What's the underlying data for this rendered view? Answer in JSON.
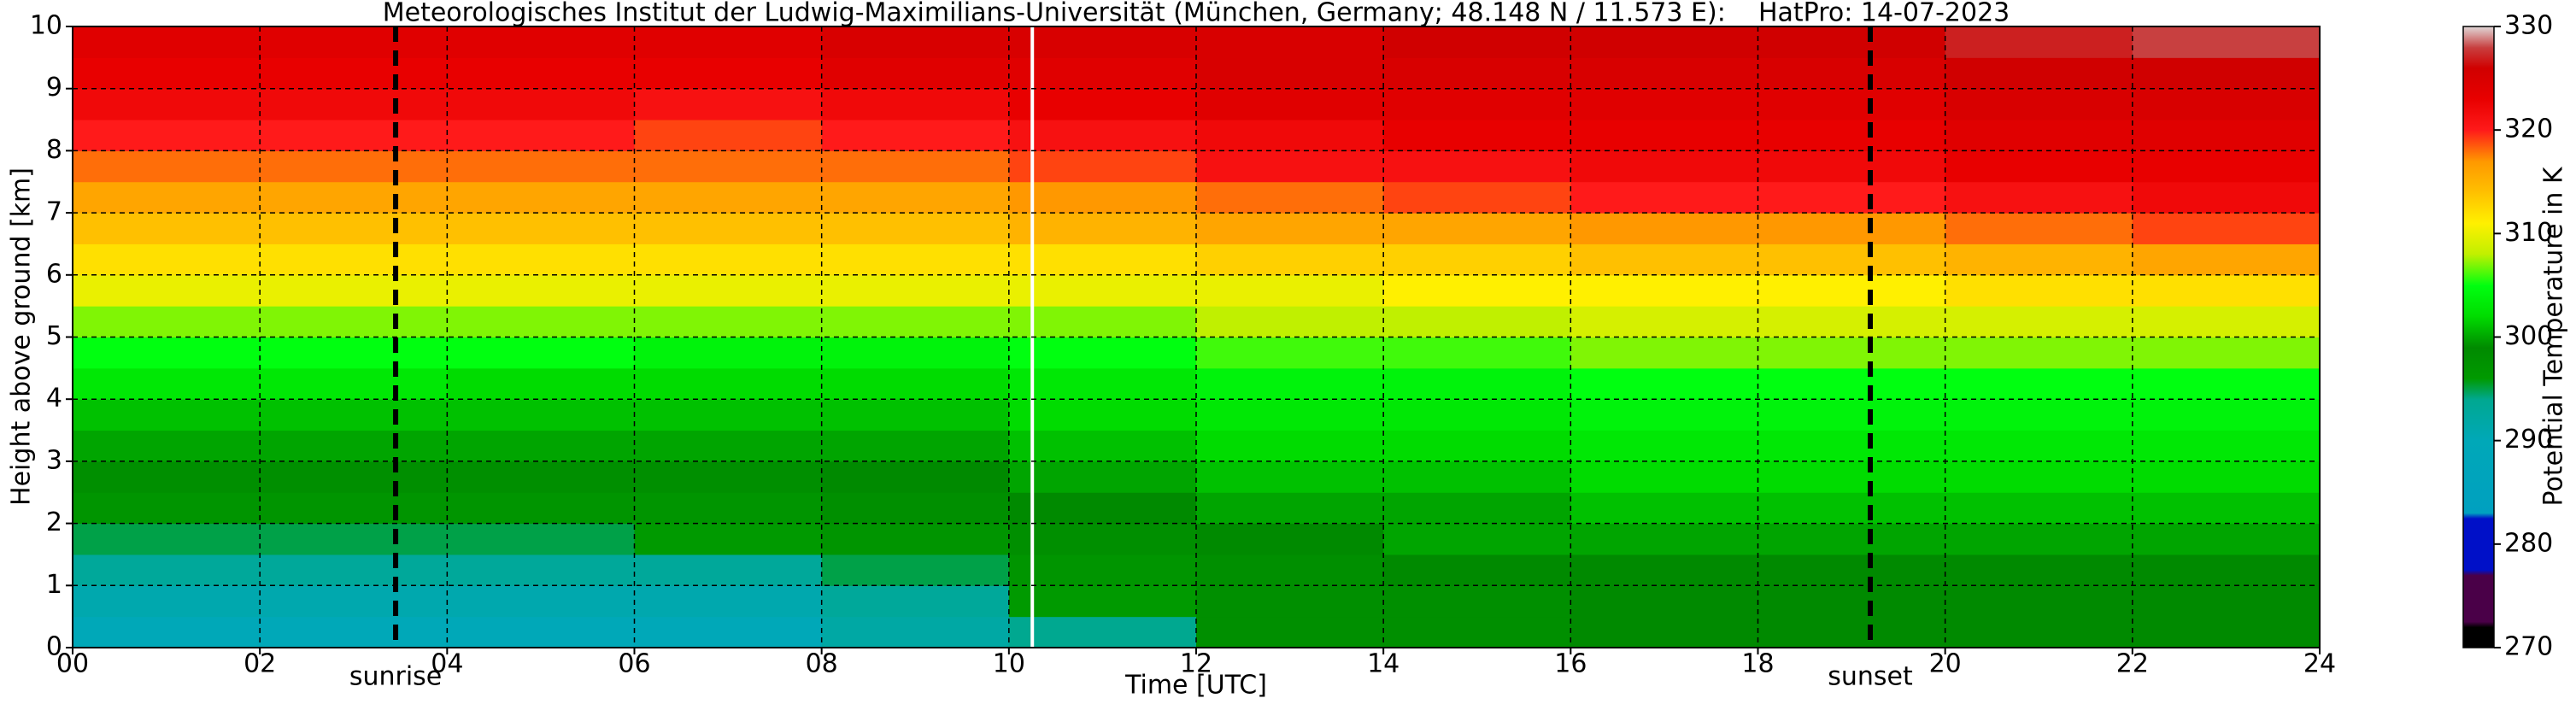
{
  "chart_data": {
    "type": "heatmap",
    "title": "Meteorologisches Institut der Ludwig-Maximilians-Universität (München, Germany; 48.148 N / 11.573 E):    HatPro: 14-07-2023",
    "x_label": "Time [UTC]",
    "y_label": "Height above ground [km]",
    "colorbar_label": "Potential Temperature in K",
    "x_edges": [
      0,
      2,
      4,
      6,
      8,
      10,
      12,
      14,
      16,
      18,
      20,
      22,
      24
    ],
    "y_edges": [
      0,
      0.5,
      1,
      1.5,
      2,
      2.5,
      3,
      3.5,
      4,
      4.5,
      5,
      5.5,
      6,
      6.5,
      7,
      7.5,
      8,
      8.5,
      9,
      9.5,
      10
    ],
    "values": [
      [
        290,
        290,
        290,
        290,
        292,
        294,
        298,
        298,
        299,
        299,
        299,
        299
      ],
      [
        291,
        291,
        291,
        291,
        293,
        296,
        298,
        298,
        299,
        299,
        299,
        299
      ],
      [
        293,
        293,
        293,
        293,
        295,
        297,
        298,
        299,
        299,
        299,
        299,
        299
      ],
      [
        295,
        295,
        295,
        296,
        297,
        298,
        299,
        300,
        300,
        300,
        300,
        300
      ],
      [
        297,
        297,
        297,
        297,
        298,
        299,
        300,
        300,
        301,
        301,
        301,
        301
      ],
      [
        298,
        298,
        298,
        298,
        299,
        300,
        301,
        301,
        302,
        302,
        302,
        302
      ],
      [
        300,
        300,
        300,
        300,
        300,
        301,
        302,
        302,
        303,
        303,
        303,
        303
      ],
      [
        301,
        301,
        301,
        301,
        301,
        302,
        303,
        303,
        304,
        304,
        304,
        304
      ],
      [
        303,
        303,
        302,
        302,
        302,
        303,
        304,
        304,
        305,
        305,
        305,
        305
      ],
      [
        305,
        305,
        305,
        304,
        304,
        305,
        306,
        306,
        307,
        307,
        307,
        307
      ],
      [
        307,
        307,
        307,
        307,
        307,
        307,
        308,
        308,
        309,
        309,
        309,
        309
      ],
      [
        310,
        310,
        310,
        310,
        310,
        310,
        310,
        311,
        311,
        311,
        312,
        312
      ],
      [
        312,
        312,
        312,
        312,
        312,
        312,
        313,
        313,
        314,
        314,
        315,
        316
      ],
      [
        314,
        314,
        314,
        314,
        314,
        315,
        316,
        316,
        317,
        317,
        318,
        319
      ],
      [
        316,
        316,
        316,
        316,
        316,
        317,
        318,
        319,
        320,
        320,
        321,
        322
      ],
      [
        318,
        318,
        318,
        318,
        318,
        319,
        321,
        321,
        322,
        322,
        323,
        323
      ],
      [
        320,
        320,
        320,
        319,
        320,
        321,
        322,
        323,
        323,
        323,
        324,
        324
      ],
      [
        322,
        322,
        322,
        321,
        322,
        323,
        324,
        324,
        324,
        324,
        325,
        325
      ],
      [
        323,
        323,
        323,
        323,
        324,
        324,
        325,
        325,
        325,
        325,
        326,
        326
      ],
      [
        324,
        324,
        324,
        324,
        325,
        325,
        325,
        326,
        326,
        326,
        327,
        328
      ]
    ],
    "colorscale": [
      [
        270,
        "#000000"
      ],
      [
        272,
        "#000000"
      ],
      [
        272.5,
        "#4a0048"
      ],
      [
        277,
        "#4a0048"
      ],
      [
        277.5,
        "#0010c8"
      ],
      [
        282.5,
        "#0010c8"
      ],
      [
        283,
        "#00a0c0"
      ],
      [
        290,
        "#00a8b8"
      ],
      [
        294,
        "#00a890"
      ],
      [
        296,
        "#009a00"
      ],
      [
        299,
        "#008a00"
      ],
      [
        302,
        "#00dc00"
      ],
      [
        305,
        "#00ff10"
      ],
      [
        308,
        "#c0f000"
      ],
      [
        311,
        "#fff000"
      ],
      [
        314,
        "#ffc000"
      ],
      [
        317,
        "#ff9800"
      ],
      [
        320,
        "#ff1a1a"
      ],
      [
        323,
        "#e80000"
      ],
      [
        326,
        "#d00000"
      ],
      [
        328,
        "#c84040"
      ],
      [
        330,
        "#e0d8d8"
      ]
    ],
    "xlim": [
      0,
      24
    ],
    "ylim": [
      0,
      10
    ],
    "clim": [
      270,
      330
    ],
    "xticks": [
      {
        "value": 0,
        "label": "00"
      },
      {
        "value": 2,
        "label": "02"
      },
      {
        "value": 4,
        "label": "04"
      },
      {
        "value": 6,
        "label": "06"
      },
      {
        "value": 8,
        "label": "08"
      },
      10,
      12,
      14,
      16,
      18,
      20,
      22,
      24
    ],
    "yticks": [
      0,
      1,
      2,
      3,
      4,
      5,
      6,
      7,
      8,
      9,
      10
    ],
    "cticks": [
      270,
      280,
      290,
      300,
      310,
      320,
      330
    ],
    "grid": true,
    "gap_x": 10.25,
    "vlines": [
      {
        "x": 3.45,
        "label": "sunrise"
      },
      {
        "x": 19.2,
        "label": "sunset"
      }
    ]
  }
}
